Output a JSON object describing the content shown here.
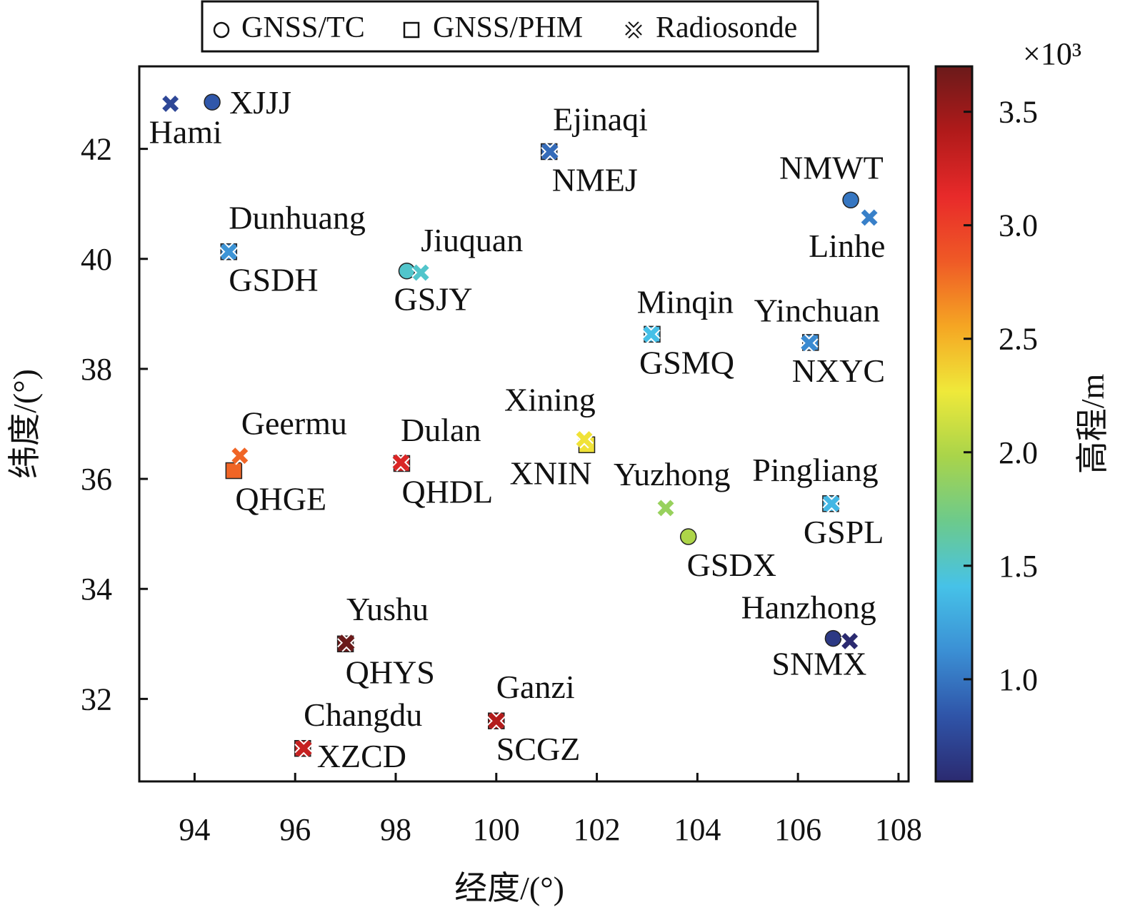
{
  "chart_data": {
    "type": "scatter",
    "xlabel": "经度/(°)",
    "ylabel": "纬度/(°)",
    "xlim": [
      92.9,
      108.2
    ],
    "ylim": [
      30.5,
      43.5
    ],
    "xticks": [
      94,
      96,
      98,
      100,
      102,
      104,
      106,
      108
    ],
    "yticks": [
      32,
      34,
      36,
      38,
      40,
      42
    ],
    "grid": false,
    "legend_position": "top-center",
    "legend": [
      {
        "symbol": "circle",
        "label": "GNSS/TC"
      },
      {
        "symbol": "square",
        "label": "GNSS/PHM"
      },
      {
        "symbol": "cross",
        "label": "Radiosonde"
      }
    ],
    "colorbar": {
      "label": "高程/m",
      "multiplier": "×10³",
      "range": [
        0.55,
        3.7
      ],
      "ticks": [
        1.0,
        1.5,
        2.0,
        2.5,
        3.0,
        3.5
      ],
      "colormap": [
        "#2b2a70",
        "#2f54a8",
        "#3b8fd4",
        "#46c2e8",
        "#6cca8c",
        "#a9d44a",
        "#efe93a",
        "#f5a623",
        "#ef5a26",
        "#e82a2a",
        "#b01a1a",
        "#6b1a1a"
      ]
    },
    "series": [
      {
        "name": "GNSS/TC",
        "points": [
          {
            "label": "XJJJ",
            "lon": 94.35,
            "lat": 42.85,
            "elev": 0.85
          },
          {
            "label": "NMWT",
            "lon": 107.05,
            "lat": 41.07,
            "elev": 1.0
          },
          {
            "label": "GSJY",
            "lon": 98.22,
            "lat": 39.78,
            "elev": 1.5
          },
          {
            "label": "GSDX",
            "lon": 103.82,
            "lat": 34.95,
            "elev": 2.0
          },
          {
            "label": "SNMX",
            "lon": 106.7,
            "lat": 33.1,
            "elev": 0.65
          }
        ]
      },
      {
        "name": "GNSS/PHM",
        "points": [
          {
            "label": "NMEJ",
            "lon": 101.05,
            "lat": 41.95,
            "elev": 0.95
          },
          {
            "label": "GSDH",
            "lon": 94.68,
            "lat": 40.13,
            "elev": 1.1
          },
          {
            "label": "GSMQ",
            "lon": 103.1,
            "lat": 38.63,
            "elev": 1.35
          },
          {
            "label": "NXYC",
            "lon": 106.25,
            "lat": 38.48,
            "elev": 1.1
          },
          {
            "label": "QHGE",
            "lon": 94.78,
            "lat": 36.15,
            "elev": 2.8
          },
          {
            "label": "QHDL",
            "lon": 98.12,
            "lat": 36.28,
            "elev": 3.2
          },
          {
            "label": "XNIN",
            "lon": 101.8,
            "lat": 36.62,
            "elev": 2.3
          },
          {
            "label": "GSPL",
            "lon": 106.65,
            "lat": 35.55,
            "elev": 1.35
          },
          {
            "label": "QHYS",
            "lon": 97.0,
            "lat": 33.0,
            "elev": 3.7
          },
          {
            "label": "XZCD",
            "lon": 96.15,
            "lat": 31.1,
            "elev": 3.3
          },
          {
            "label": "SCGZ",
            "lon": 100.0,
            "lat": 31.6,
            "elev": 3.4
          }
        ]
      },
      {
        "name": "Radiosonde",
        "points": [
          {
            "label": "Hami",
            "lon": 93.52,
            "lat": 42.82,
            "elev": 0.75
          },
          {
            "label": "Ejinaqi",
            "lon": 101.07,
            "lat": 41.95,
            "elev": 0.95
          },
          {
            "label": "Linhe",
            "lon": 107.42,
            "lat": 40.75,
            "elev": 1.05
          },
          {
            "label": "Dunhuang",
            "lon": 94.68,
            "lat": 40.13,
            "elev": 1.15
          },
          {
            "label": "Jiuquan",
            "lon": 98.5,
            "lat": 39.75,
            "elev": 1.5
          },
          {
            "label": "Minqin",
            "lon": 103.08,
            "lat": 38.63,
            "elev": 1.4
          },
          {
            "label": "Yinchuan",
            "lon": 106.22,
            "lat": 38.47,
            "elev": 1.1
          },
          {
            "label": "Geermu",
            "lon": 94.9,
            "lat": 36.42,
            "elev": 2.8
          },
          {
            "label": "Dulan",
            "lon": 98.1,
            "lat": 36.3,
            "elev": 3.2
          },
          {
            "label": "Xining",
            "lon": 101.75,
            "lat": 36.72,
            "elev": 2.3
          },
          {
            "label": "Yuzhong",
            "lon": 103.37,
            "lat": 35.47,
            "elev": 1.9
          },
          {
            "label": "Pingliang",
            "lon": 106.67,
            "lat": 35.55,
            "elev": 1.35
          },
          {
            "label": "Hanzhong",
            "lon": 107.03,
            "lat": 33.05,
            "elev": 0.55
          },
          {
            "label": "Yushu",
            "lon": 97.02,
            "lat": 33.02,
            "elev": 3.7
          },
          {
            "label": "Changdu",
            "lon": 96.17,
            "lat": 31.1,
            "elev": 3.3
          },
          {
            "label": "Ganzi",
            "lon": 100.0,
            "lat": 31.6,
            "elev": 3.4
          }
        ]
      }
    ]
  }
}
